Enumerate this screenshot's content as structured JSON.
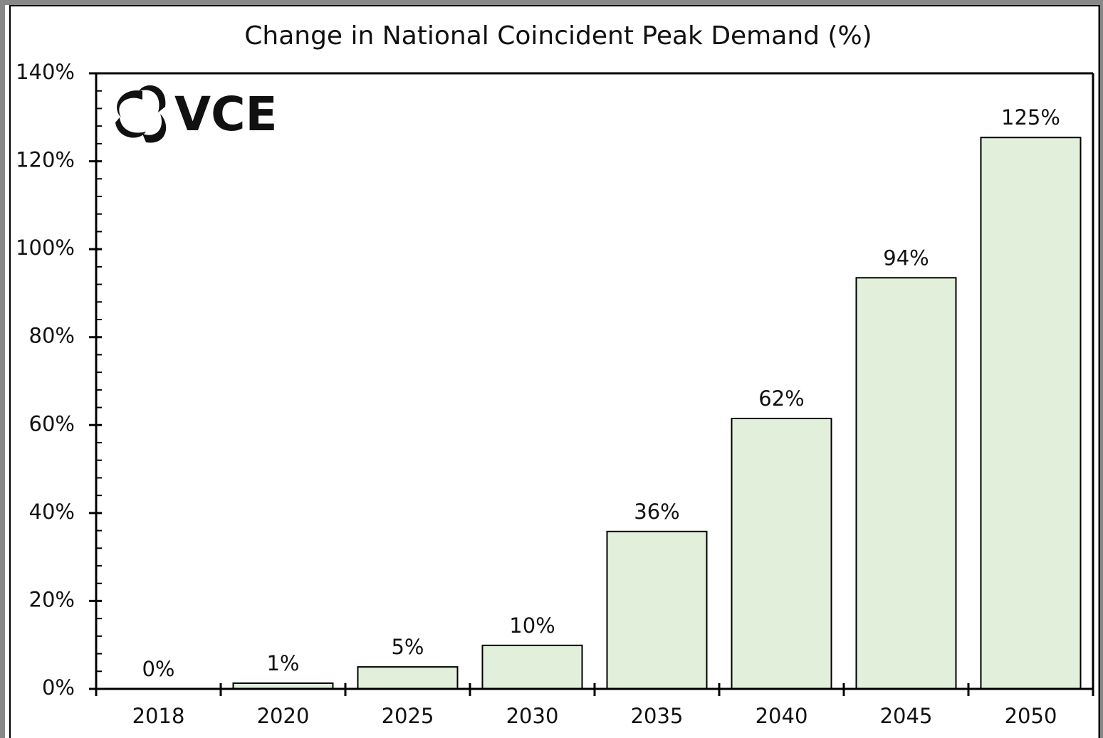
{
  "chart_data": {
    "type": "bar",
    "title": "Change in National Coincident Peak Demand (%)",
    "logo": "VCE",
    "categories": [
      "2018",
      "2020",
      "2025",
      "2030",
      "2035",
      "2040",
      "2045",
      "2050"
    ],
    "values": [
      0,
      1.3,
      5,
      9.9,
      35.8,
      61.5,
      93.5,
      125.4
    ],
    "value_labels": [
      "0%",
      "1%",
      "5%",
      "10%",
      "36%",
      "62%",
      "94%",
      "125%"
    ],
    "color": "#e2efda",
    "ylim": [
      0,
      140
    ],
    "yticks": [
      {
        "value": 0,
        "label": "0%"
      },
      {
        "value": 20,
        "label": "20%"
      },
      {
        "value": 40,
        "label": "40%"
      },
      {
        "value": 60,
        "label": "60%"
      },
      {
        "value": 80,
        "label": "80%"
      },
      {
        "value": 100,
        "label": "100%"
      },
      {
        "value": 120,
        "label": "120%"
      },
      {
        "value": 140,
        "label": "140%"
      }
    ],
    "minor_yticks": [
      4,
      8,
      12,
      16,
      24,
      28,
      32,
      36,
      44,
      48,
      52,
      56,
      64,
      68,
      72,
      76,
      84,
      88,
      92,
      96,
      104,
      108,
      112,
      116,
      124,
      128,
      132,
      136
    ],
    "grid": false
  }
}
